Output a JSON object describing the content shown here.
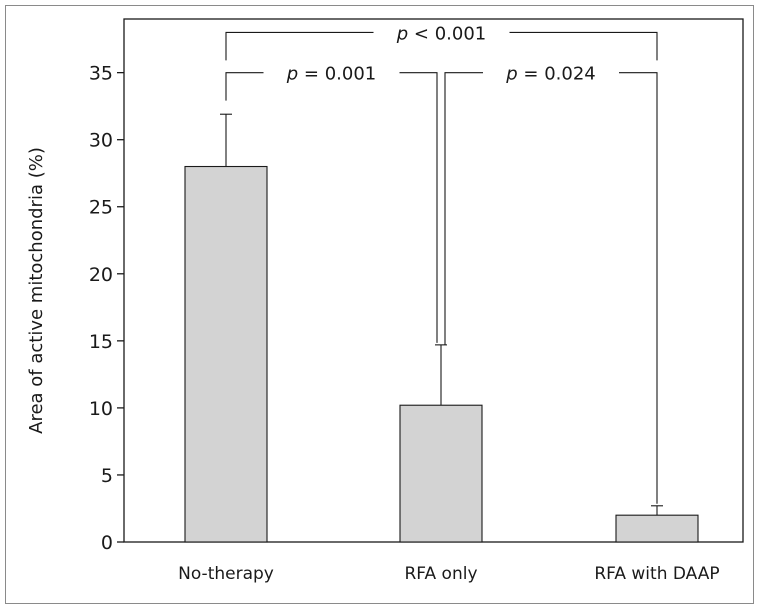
{
  "chart_data": {
    "type": "bar",
    "title": "",
    "xlabel": "",
    "ylabel": "Area of active mitochondria (%)",
    "ylim": [
      0,
      39
    ],
    "yticks": [
      0,
      5,
      10,
      15,
      20,
      25,
      30,
      35
    ],
    "grid": false,
    "categories": [
      "No-therapy",
      "RFA only",
      "RFA with DAAP"
    ],
    "values": [
      28,
      10.2,
      2.0
    ],
    "error_upper": [
      3.9,
      4.5,
      0.7
    ],
    "bar_color": "#d3d3d3",
    "annotations": [
      {
        "from": 0,
        "to": 2,
        "level": 38,
        "italic": "p",
        "text": " < 0.001"
      },
      {
        "from": 0,
        "to": 1,
        "level": 35,
        "italic": "p",
        "text": " = 0.001"
      },
      {
        "from": 1,
        "to": 2,
        "level": 35,
        "italic": "p",
        "text": " = 0.024"
      }
    ]
  }
}
